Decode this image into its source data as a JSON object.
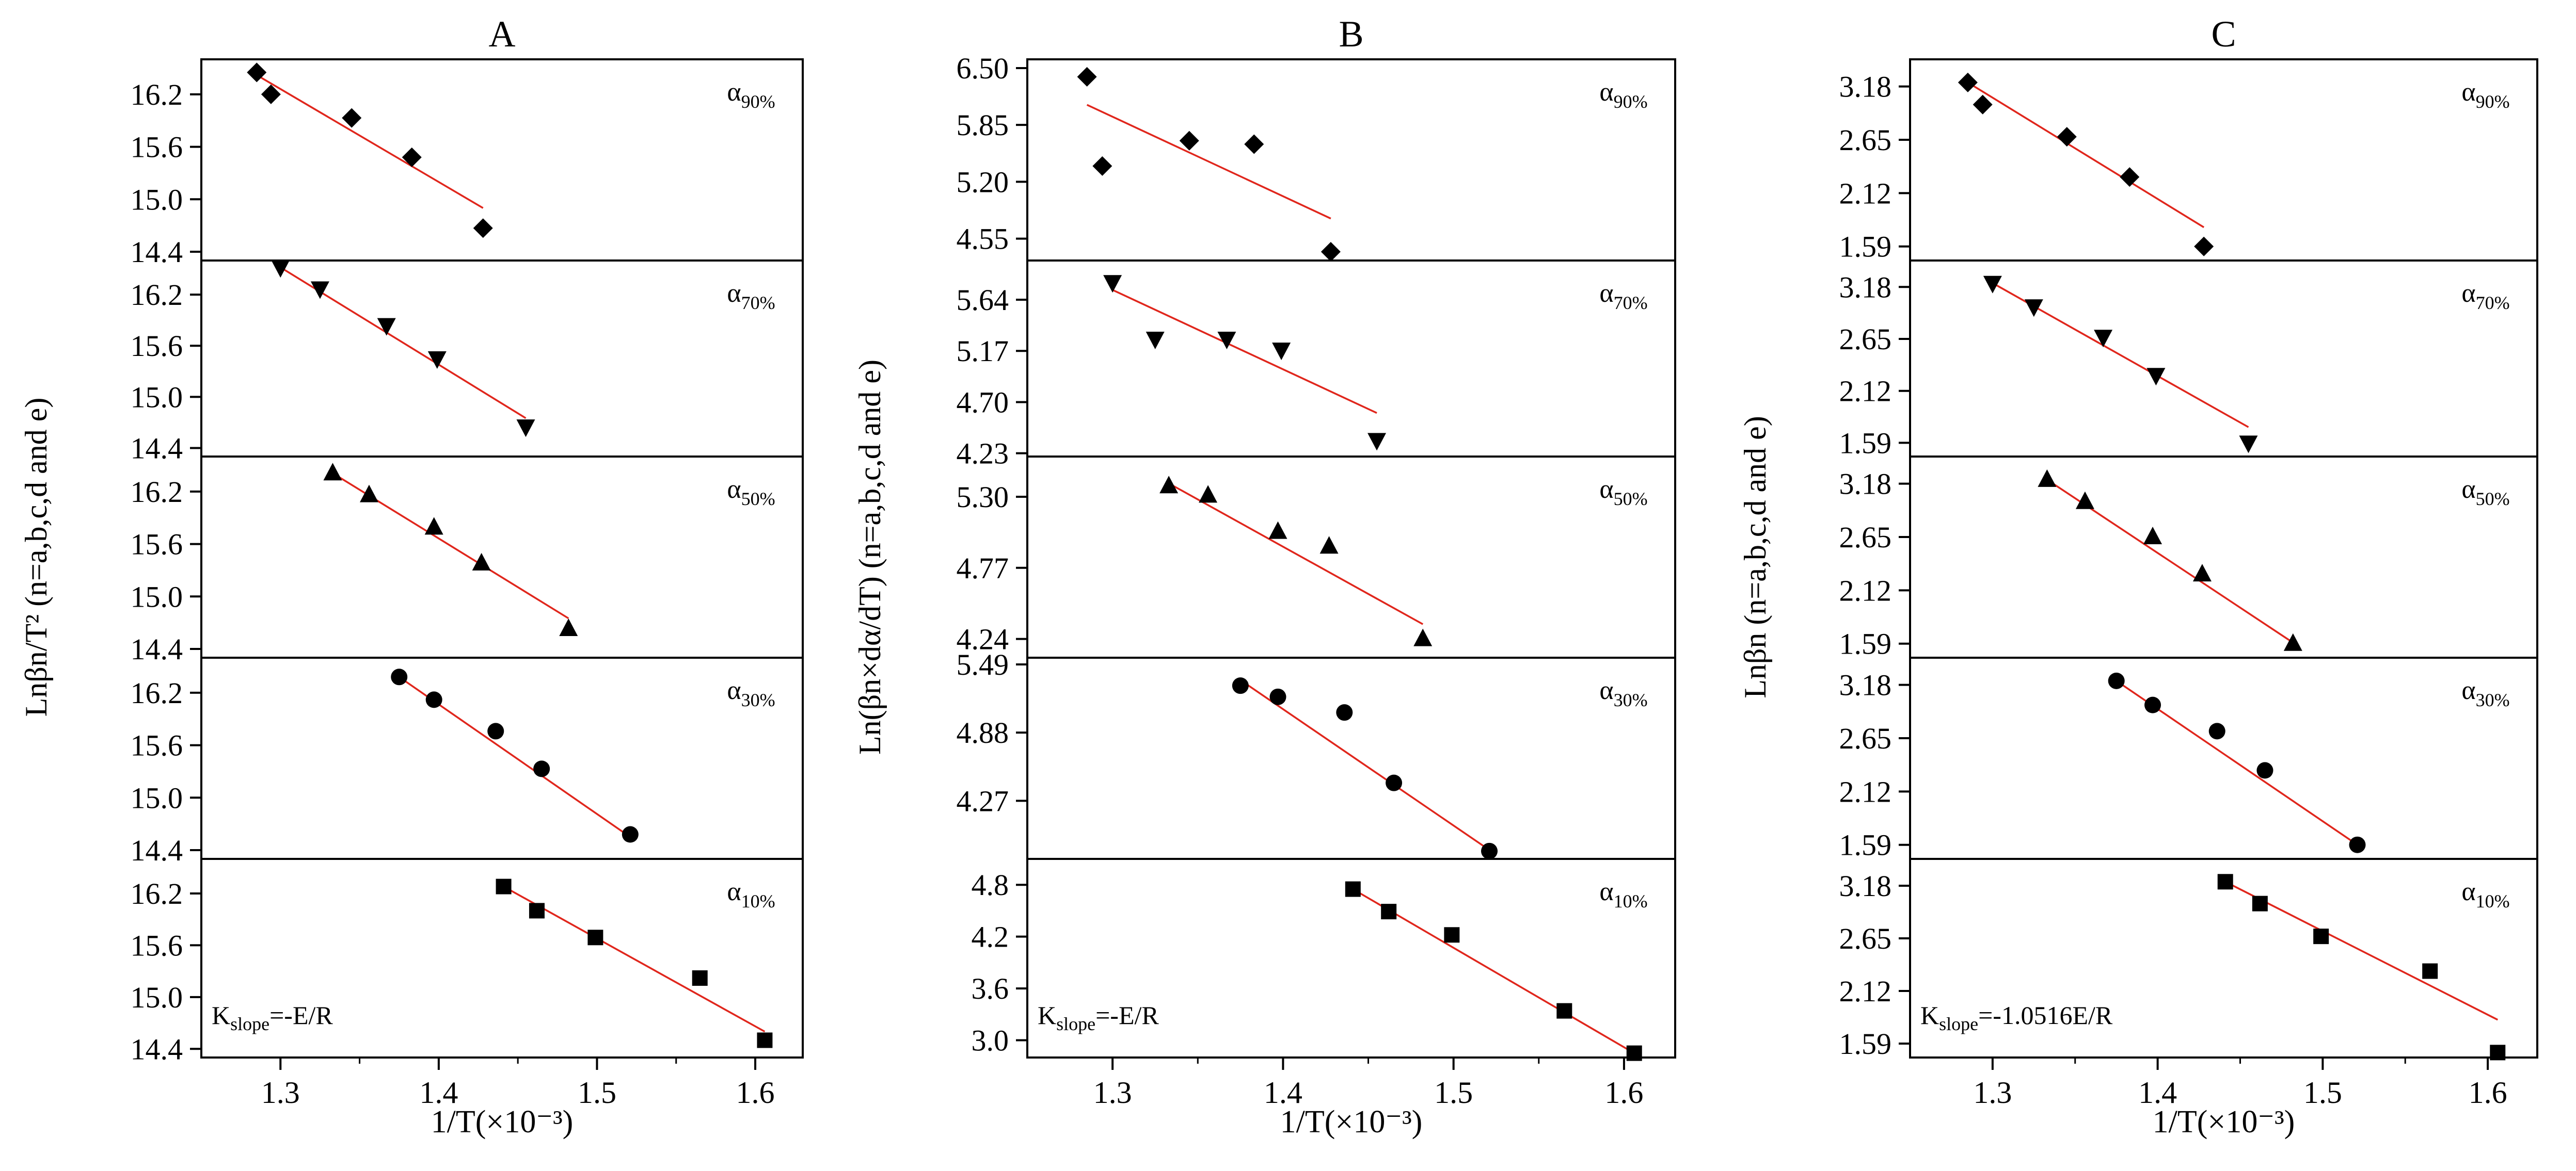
{
  "figure": {
    "panel_titles": [
      "A",
      "B",
      "C"
    ],
    "x_axis_label": "1/T(×10⁻³)",
    "x_tick_labels": [
      "1.3",
      "1.4",
      "1.5",
      "1.6"
    ]
  },
  "chart_data": [
    {
      "type": "scatter",
      "title": "A",
      "xlabel": "1/T(×10⁻³)",
      "ylabel": "Lnβn/T² (n=a,b,c,d and e)",
      "xlim": [
        1.25,
        1.63
      ],
      "xticks": [
        1.3,
        1.4,
        1.5,
        1.6
      ],
      "annotation": "K_slope=-E/R",
      "rows": [
        {
          "alpha": "90%",
          "marker": "diamond",
          "ylim": [
            14.3,
            16.6
          ],
          "yticks": [
            14.4,
            15.0,
            15.6,
            16.2
          ],
          "x": [
            1.285,
            1.294,
            1.345,
            1.383,
            1.428
          ],
          "y": [
            16.45,
            16.2,
            15.93,
            15.48,
            14.67
          ],
          "fit": [
            [
              1.285,
              16.42
            ],
            [
              1.428,
              14.9
            ]
          ]
        },
        {
          "alpha": "70%",
          "marker": "triangle-down",
          "ylim": [
            14.3,
            16.6
          ],
          "yticks": [
            14.4,
            15.0,
            15.6,
            16.2
          ],
          "x": [
            1.3,
            1.325,
            1.367,
            1.399,
            1.455
          ],
          "y": [
            16.52,
            16.27,
            15.84,
            15.45,
            14.65
          ],
          "fit": [
            [
              1.3,
              16.52
            ],
            [
              1.455,
              14.75
            ]
          ]
        },
        {
          "alpha": "50%",
          "marker": "triangle-up",
          "ylim": [
            14.3,
            16.6
          ],
          "yticks": [
            14.4,
            15.0,
            15.6,
            16.2
          ],
          "x": [
            1.333,
            1.356,
            1.397,
            1.427,
            1.482
          ],
          "y": [
            16.41,
            16.16,
            15.79,
            15.38,
            14.63
          ],
          "fit": [
            [
              1.333,
              16.41
            ],
            [
              1.482,
              14.75
            ]
          ]
        },
        {
          "alpha": "30%",
          "marker": "circle",
          "ylim": [
            14.3,
            16.6
          ],
          "yticks": [
            14.4,
            15.0,
            15.6,
            16.2
          ],
          "x": [
            1.375,
            1.397,
            1.436,
            1.465,
            1.521
          ],
          "y": [
            16.38,
            16.12,
            15.76,
            15.33,
            14.58
          ],
          "fit": [
            [
              1.375,
              16.38
            ],
            [
              1.521,
              14.55
            ]
          ]
        },
        {
          "alpha": "10%",
          "marker": "square",
          "ylim": [
            14.3,
            16.6
          ],
          "yticks": [
            14.4,
            15.0,
            15.6,
            16.2
          ],
          "x": [
            1.441,
            1.462,
            1.499,
            1.565,
            1.606
          ],
          "y": [
            16.28,
            16.0,
            15.69,
            15.22,
            14.5
          ],
          "fit": [
            [
              1.441,
              16.28
            ],
            [
              1.606,
              14.6
            ]
          ]
        }
      ]
    },
    {
      "type": "scatter",
      "title": "B",
      "xlabel": "1/T(×10⁻³)",
      "ylabel": "Ln(βn×dα/dT) (n=a,b,c,d and e)",
      "xlim": [
        1.25,
        1.63
      ],
      "xticks": [
        1.3,
        1.4,
        1.5,
        1.6
      ],
      "annotation": "K_slope=-E/R",
      "rows": [
        {
          "alpha": "90%",
          "marker": "diamond",
          "ylim": [
            4.3,
            6.6
          ],
          "yticks": [
            4.55,
            5.2,
            5.85,
            6.5
          ],
          "yticklabels": [
            "4.55",
            "5.20",
            "5.85",
            "6.50"
          ],
          "x": [
            1.285,
            1.294,
            1.345,
            1.383,
            1.428
          ],
          "y": [
            6.4,
            5.38,
            5.67,
            5.63,
            4.4
          ],
          "fit": [
            [
              1.285,
              6.08
            ],
            [
              1.428,
              4.78
            ]
          ]
        },
        {
          "alpha": "70%",
          "marker": "triangle-down",
          "ylim": [
            4.2,
            6.0
          ],
          "yticks": [
            4.23,
            4.7,
            5.17,
            5.64
          ],
          "yticklabels": [
            "4.23",
            "4.70",
            "5.17",
            "5.64"
          ],
          "x": [
            1.3,
            1.325,
            1.367,
            1.399,
            1.455
          ],
          "y": [
            5.8,
            5.28,
            5.28,
            5.18,
            4.35
          ],
          "fit": [
            [
              1.3,
              5.73
            ],
            [
              1.455,
              4.6
            ]
          ]
        },
        {
          "alpha": "50%",
          "marker": "triangle-up",
          "ylim": [
            4.1,
            5.6
          ],
          "yticks": [
            4.24,
            4.77,
            5.3
          ],
          "yticklabels": [
            "4.24",
            "4.77",
            "5.30"
          ],
          "x": [
            1.333,
            1.356,
            1.397,
            1.427,
            1.482
          ],
          "y": [
            5.38,
            5.31,
            5.04,
            4.93,
            4.24
          ],
          "fit": [
            [
              1.333,
              5.4
            ],
            [
              1.482,
              4.35
            ]
          ]
        },
        {
          "alpha": "30%",
          "marker": "circle",
          "ylim": [
            3.75,
            5.55
          ],
          "yticks": [
            4.27,
            4.88,
            5.49
          ],
          "yticklabels": [
            "4.27",
            "4.88",
            "5.49"
          ],
          "x": [
            1.375,
            1.397,
            1.436,
            1.465,
            1.521
          ],
          "y": [
            5.3,
            5.2,
            5.06,
            4.43,
            3.82
          ],
          "fit": [
            [
              1.375,
              5.35
            ],
            [
              1.521,
              3.83
            ]
          ]
        },
        {
          "alpha": "10%",
          "marker": "square",
          "ylim": [
            2.8,
            5.1
          ],
          "yticks": [
            3.0,
            3.6,
            4.2,
            4.8
          ],
          "yticklabels": [
            "3.0",
            "3.6",
            "4.2",
            "4.8"
          ],
          "x": [
            1.441,
            1.462,
            1.499,
            1.565,
            1.606
          ],
          "y": [
            4.75,
            4.49,
            4.22,
            3.34,
            2.85
          ],
          "fit": [
            [
              1.441,
              4.75
            ],
            [
              1.606,
              2.85
            ]
          ]
        }
      ]
    },
    {
      "type": "scatter",
      "title": "C",
      "xlabel": "1/T(×10⁻³)",
      "ylabel": "Lnβn (n=a,b,c,d and e)",
      "xlim": [
        1.25,
        1.63
      ],
      "xticks": [
        1.3,
        1.4,
        1.5,
        1.6
      ],
      "annotation": "K_slope=-1.0516E/R",
      "rows": [
        {
          "alpha": "90%",
          "marker": "diamond",
          "ylim": [
            1.45,
            3.45
          ],
          "yticks": [
            1.59,
            2.12,
            2.65,
            3.18
          ],
          "yticklabels": [
            "1.59",
            "2.12",
            "2.65",
            "3.18"
          ],
          "x": [
            1.285,
            1.294,
            1.345,
            1.383,
            1.428
          ],
          "y": [
            3.22,
            3.0,
            2.68,
            2.28,
            1.59
          ],
          "fit": [
            [
              1.285,
              3.22
            ],
            [
              1.428,
              1.78
            ]
          ]
        },
        {
          "alpha": "70%",
          "marker": "triangle-down",
          "ylim": [
            1.45,
            3.45
          ],
          "yticks": [
            1.59,
            2.12,
            2.65,
            3.18
          ],
          "yticklabels": [
            "1.59",
            "2.12",
            "2.65",
            "3.18"
          ],
          "x": [
            1.3,
            1.325,
            1.367,
            1.399,
            1.455
          ],
          "y": [
            3.22,
            2.98,
            2.67,
            2.28,
            1.59
          ],
          "fit": [
            [
              1.3,
              3.22
            ],
            [
              1.455,
              1.75
            ]
          ]
        },
        {
          "alpha": "50%",
          "marker": "triangle-up",
          "ylim": [
            1.45,
            3.45
          ],
          "yticks": [
            1.59,
            2.12,
            2.65,
            3.18
          ],
          "yticklabels": [
            "1.59",
            "2.12",
            "2.65",
            "3.18"
          ],
          "x": [
            1.333,
            1.356,
            1.397,
            1.427,
            1.482
          ],
          "y": [
            3.22,
            3.0,
            2.65,
            2.28,
            1.59
          ],
          "fit": [
            [
              1.333,
              3.22
            ],
            [
              1.482,
              1.6
            ]
          ]
        },
        {
          "alpha": "30%",
          "marker": "circle",
          "ylim": [
            1.45,
            3.45
          ],
          "yticks": [
            1.59,
            2.12,
            2.65,
            3.18
          ],
          "yticklabels": [
            "1.59",
            "2.12",
            "2.65",
            "3.18"
          ],
          "x": [
            1.375,
            1.397,
            1.436,
            1.465,
            1.521
          ],
          "y": [
            3.22,
            2.98,
            2.72,
            2.33,
            1.59
          ],
          "fit": [
            [
              1.375,
              3.22
            ],
            [
              1.521,
              1.59
            ]
          ]
        },
        {
          "alpha": "10%",
          "marker": "square",
          "ylim": [
            1.45,
            3.45
          ],
          "yticks": [
            1.59,
            2.12,
            2.65,
            3.18
          ],
          "yticklabels": [
            "1.59",
            "2.12",
            "2.65",
            "3.18"
          ],
          "x": [
            1.441,
            1.462,
            1.499,
            1.565,
            1.606
          ],
          "y": [
            3.22,
            3.0,
            2.67,
            2.32,
            1.5
          ],
          "fit": [
            [
              1.441,
              3.22
            ],
            [
              1.606,
              1.83
            ]
          ]
        }
      ]
    }
  ]
}
